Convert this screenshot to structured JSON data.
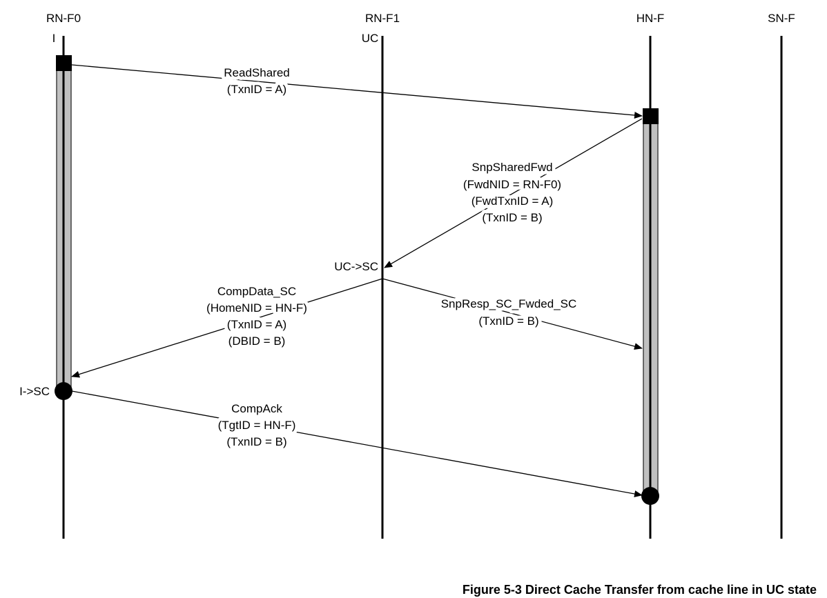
{
  "nodes": [
    {
      "name": "RN-F0",
      "initial_state": "I"
    },
    {
      "name": "RN-F1",
      "initial_state": "UC"
    },
    {
      "name": "HN-F",
      "initial_state": ""
    },
    {
      "name": "SN-F",
      "initial_state": ""
    }
  ],
  "state_changes": {
    "rnf1": "UC->SC",
    "rnf0": "I->SC"
  },
  "messages": [
    {
      "from": "RN-F0",
      "to": "HN-F",
      "lines": [
        "ReadShared",
        "(TxnID = A)"
      ]
    },
    {
      "from": "HN-F",
      "to": "RN-F1",
      "lines": [
        "SnpSharedFwd",
        "(FwdNID = RN-F0)",
        "(FwdTxnID = A)",
        "(TxnID = B)"
      ]
    },
    {
      "from": "RN-F1",
      "to": "RN-F0",
      "lines": [
        "CompData_SC",
        "(HomeNID = HN-F)",
        "(TxnID = A)",
        "(DBID = B)"
      ]
    },
    {
      "from": "RN-F1",
      "to": "HN-F",
      "lines": [
        "SnpResp_SC_Fwded_SC",
        "(TxnID = B)"
      ]
    },
    {
      "from": "RN-F0",
      "to": "HN-F",
      "lines": [
        "CompAck",
        "(TgtID = HN-F)",
        "(TxnID = B)"
      ]
    }
  ],
  "caption": "Figure 5-3 Direct Cache Transfer from cache line in UC state",
  "colors": {
    "line": "#000000",
    "active_bar": "#c0c0c0"
  }
}
